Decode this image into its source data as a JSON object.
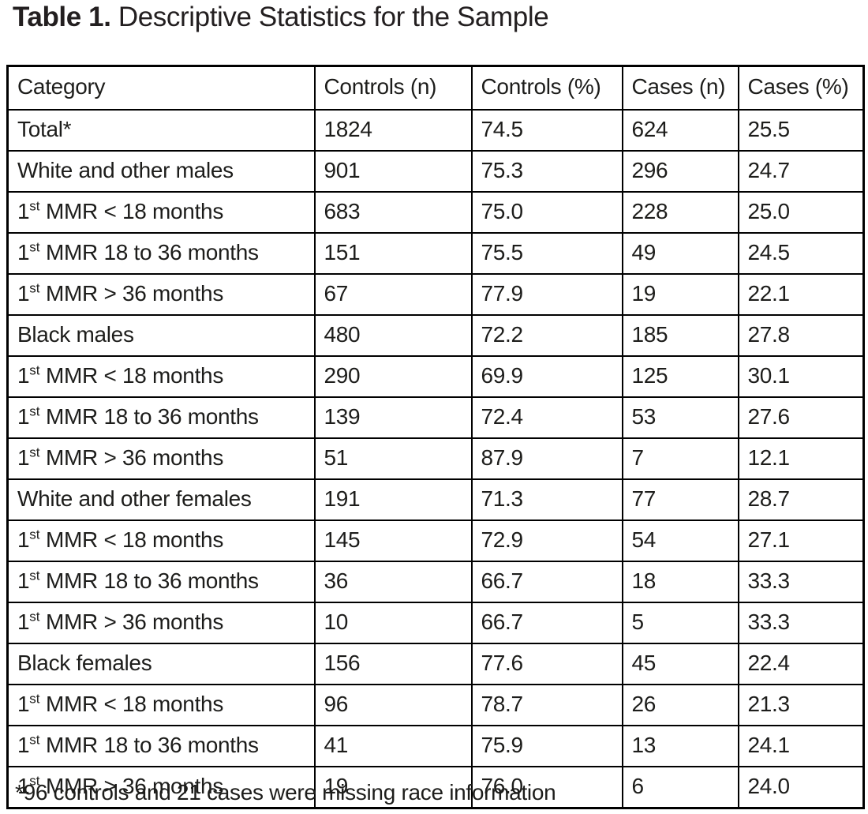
{
  "title": {
    "label": "Table 1.",
    "text": " Descriptive Statistics for the Sample"
  },
  "table": {
    "columns": [
      "Category",
      "Controls (n)",
      "Controls (%)",
      "Cases (n)",
      "Cases (%)"
    ],
    "rows": [
      {
        "category_main": "Total*",
        "category_sup": "",
        "category_rest": "",
        "values": [
          "1824",
          "74.5",
          "624",
          "25.5"
        ]
      },
      {
        "category_main": "White and other males",
        "category_sup": "",
        "category_rest": "",
        "values": [
          "901",
          "75.3",
          "296",
          "24.7"
        ]
      },
      {
        "category_main": "1",
        "category_sup": "st",
        "category_rest": " MMR < 18 months",
        "values": [
          "683",
          "75.0",
          "228",
          "25.0"
        ]
      },
      {
        "category_main": "1",
        "category_sup": "st",
        "category_rest": " MMR 18 to 36 months",
        "values": [
          "151",
          "75.5",
          "49",
          "24.5"
        ]
      },
      {
        "category_main": "1",
        "category_sup": "st",
        "category_rest": " MMR > 36 months",
        "values": [
          "67",
          "77.9",
          "19",
          "22.1"
        ]
      },
      {
        "category_main": "Black males",
        "category_sup": "",
        "category_rest": "",
        "values": [
          "480",
          "72.2",
          "185",
          "27.8"
        ]
      },
      {
        "category_main": "1",
        "category_sup": "st",
        "category_rest": " MMR < 18 months",
        "values": [
          "290",
          "69.9",
          "125",
          "30.1"
        ]
      },
      {
        "category_main": "1",
        "category_sup": "st",
        "category_rest": " MMR 18 to 36 months",
        "values": [
          "139",
          "72.4",
          "53",
          "27.6"
        ]
      },
      {
        "category_main": "1",
        "category_sup": "st",
        "category_rest": " MMR > 36 months",
        "values": [
          "51",
          "87.9",
          "7",
          "12.1"
        ]
      },
      {
        "category_main": "White and other females",
        "category_sup": "",
        "category_rest": "",
        "values": [
          "191",
          "71.3",
          "77",
          "28.7"
        ]
      },
      {
        "category_main": "1",
        "category_sup": "st",
        "category_rest": " MMR < 18 months",
        "values": [
          "145",
          "72.9",
          "54",
          "27.1"
        ]
      },
      {
        "category_main": "1",
        "category_sup": "st",
        "category_rest": " MMR 18 to 36 months",
        "values": [
          "36",
          "66.7",
          "18",
          "33.3"
        ]
      },
      {
        "category_main": "1",
        "category_sup": "st",
        "category_rest": " MMR > 36 months",
        "values": [
          "10",
          "66.7",
          "5",
          "33.3"
        ]
      },
      {
        "category_main": "Black females",
        "category_sup": "",
        "category_rest": "",
        "values": [
          "156",
          "77.6",
          "45",
          "22.4"
        ]
      },
      {
        "category_main": "1",
        "category_sup": "st",
        "category_rest": " MMR < 18 months",
        "values": [
          "96",
          "78.7",
          "26",
          "21.3"
        ]
      },
      {
        "category_main": "1",
        "category_sup": "st",
        "category_rest": " MMR 18 to 36 months",
        "values": [
          "41",
          "75.9",
          "13",
          "24.1"
        ]
      },
      {
        "category_main": "1",
        "category_sup": "st",
        "category_rest": " MMR > 36 months",
        "values": [
          "19",
          "76.0",
          "6",
          "24.0"
        ]
      }
    ]
  },
  "footnote": "*96 controls and 21 cases were missing race information"
}
